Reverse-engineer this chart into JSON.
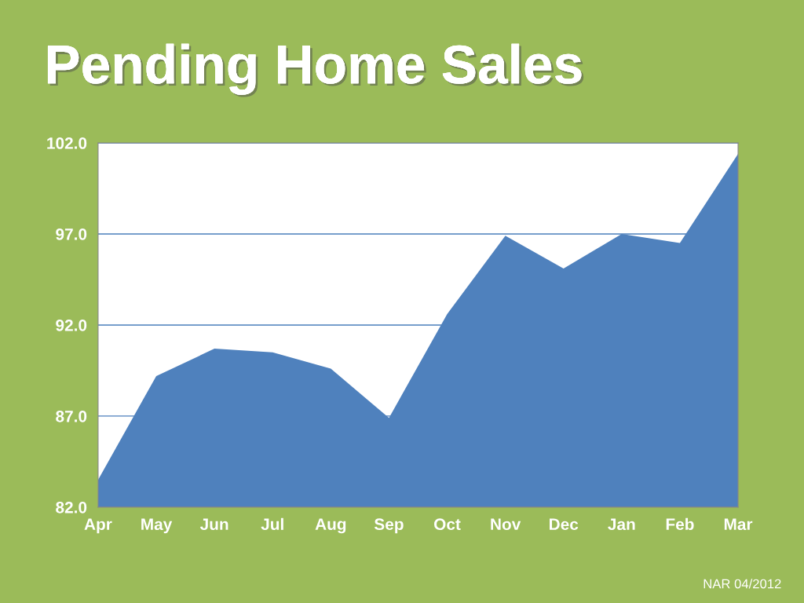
{
  "chart_data": {
    "type": "area",
    "title": "Pending Home Sales",
    "categories": [
      "Apr",
      "May",
      "Jun",
      "Jul",
      "Aug",
      "Sep",
      "Oct",
      "Nov",
      "Dec",
      "Jan",
      "Feb",
      "Mar"
    ],
    "series": [
      {
        "color": "#4f81bd",
        "values": [
          83.5,
          89.2,
          90.7,
          90.5,
          89.6,
          86.9,
          92.6,
          96.9,
          95.1,
          97.0,
          96.5,
          101.4
        ]
      }
    ],
    "ylim": [
      82,
      102
    ],
    "yticks": [
      {
        "value": 82,
        "label": "82.0"
      },
      {
        "value": 87,
        "label": "87.0"
      },
      {
        "value": 92,
        "label": "92.0"
      },
      {
        "value": 97,
        "label": "97.0"
      },
      {
        "value": 102,
        "label": "102.0"
      }
    ],
    "grid": "y",
    "legend": false,
    "annotations": [
      "NAR 04/2012"
    ]
  }
}
